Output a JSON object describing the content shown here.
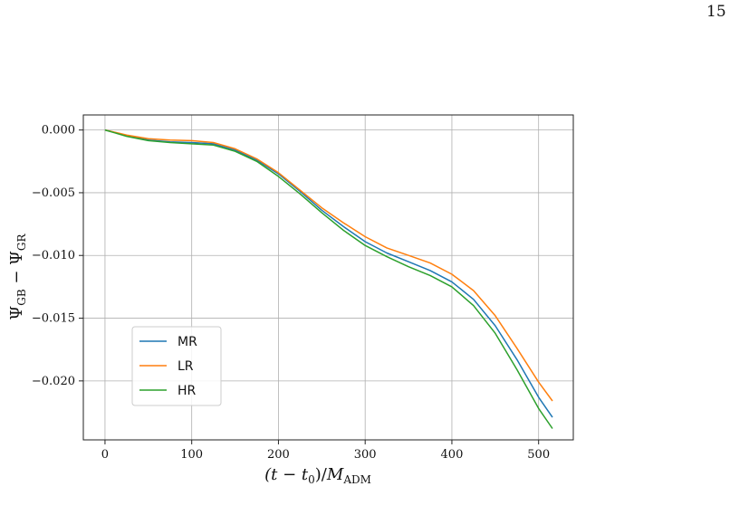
{
  "page": {
    "number": "15"
  },
  "chart_data": {
    "type": "line",
    "xlabel": "(t − t₀)/M_ADM",
    "ylabel": "Ψ_GB − Ψ_GR",
    "xlim": [
      -25,
      540
    ],
    "ylim": [
      -0.0247,
      0.0012
    ],
    "x_ticks": [
      0,
      100,
      200,
      300,
      400,
      500
    ],
    "x_tick_labels": [
      "0",
      "100",
      "200",
      "300",
      "400",
      "500"
    ],
    "y_ticks": [
      0.0,
      -0.005,
      -0.01,
      -0.015,
      -0.02
    ],
    "y_tick_labels": [
      "0.000",
      "−0.005",
      "−0.010",
      "−0.015",
      "−0.020"
    ],
    "grid": true,
    "legend_position": "lower-left",
    "series": [
      {
        "name": "MR",
        "color": "#1f77b4",
        "x": [
          0,
          25,
          50,
          75,
          100,
          125,
          150,
          175,
          200,
          225,
          250,
          275,
          300,
          325,
          350,
          375,
          400,
          425,
          450,
          475,
          500,
          516
        ],
        "y": [
          0.0,
          -0.00045,
          -0.0008,
          -0.00095,
          -0.001,
          -0.0011,
          -0.0016,
          -0.0024,
          -0.0035,
          -0.0049,
          -0.0064,
          -0.0077,
          -0.0089,
          -0.0098,
          -0.0105,
          -0.0112,
          -0.0121,
          -0.0135,
          -0.0156,
          -0.0183,
          -0.0213,
          -0.0229
        ]
      },
      {
        "name": "LR",
        "color": "#ff7f0e",
        "x": [
          0,
          25,
          50,
          75,
          100,
          125,
          150,
          175,
          200,
          225,
          250,
          275,
          300,
          325,
          350,
          375,
          400,
          425,
          450,
          475,
          500,
          516
        ],
        "y": [
          0.0,
          -0.0004,
          -0.0007,
          -0.0008,
          -0.00085,
          -0.001,
          -0.0015,
          -0.0023,
          -0.0034,
          -0.0048,
          -0.0062,
          -0.0074,
          -0.0085,
          -0.0094,
          -0.01,
          -0.0106,
          -0.0115,
          -0.0128,
          -0.0148,
          -0.0174,
          -0.0201,
          -0.0216
        ]
      },
      {
        "name": "HR",
        "color": "#2ca02c",
        "x": [
          0,
          25,
          50,
          75,
          100,
          125,
          150,
          175,
          200,
          225,
          250,
          275,
          300,
          325,
          350,
          375,
          400,
          425,
          450,
          475,
          500,
          516
        ],
        "y": [
          0.0,
          -0.0005,
          -0.00085,
          -0.001,
          -0.0011,
          -0.0012,
          -0.0017,
          -0.0025,
          -0.0037,
          -0.0051,
          -0.0066,
          -0.008,
          -0.0092,
          -0.0101,
          -0.0109,
          -0.0116,
          -0.0125,
          -0.014,
          -0.0162,
          -0.0191,
          -0.0222,
          -0.0238
        ]
      }
    ]
  }
}
